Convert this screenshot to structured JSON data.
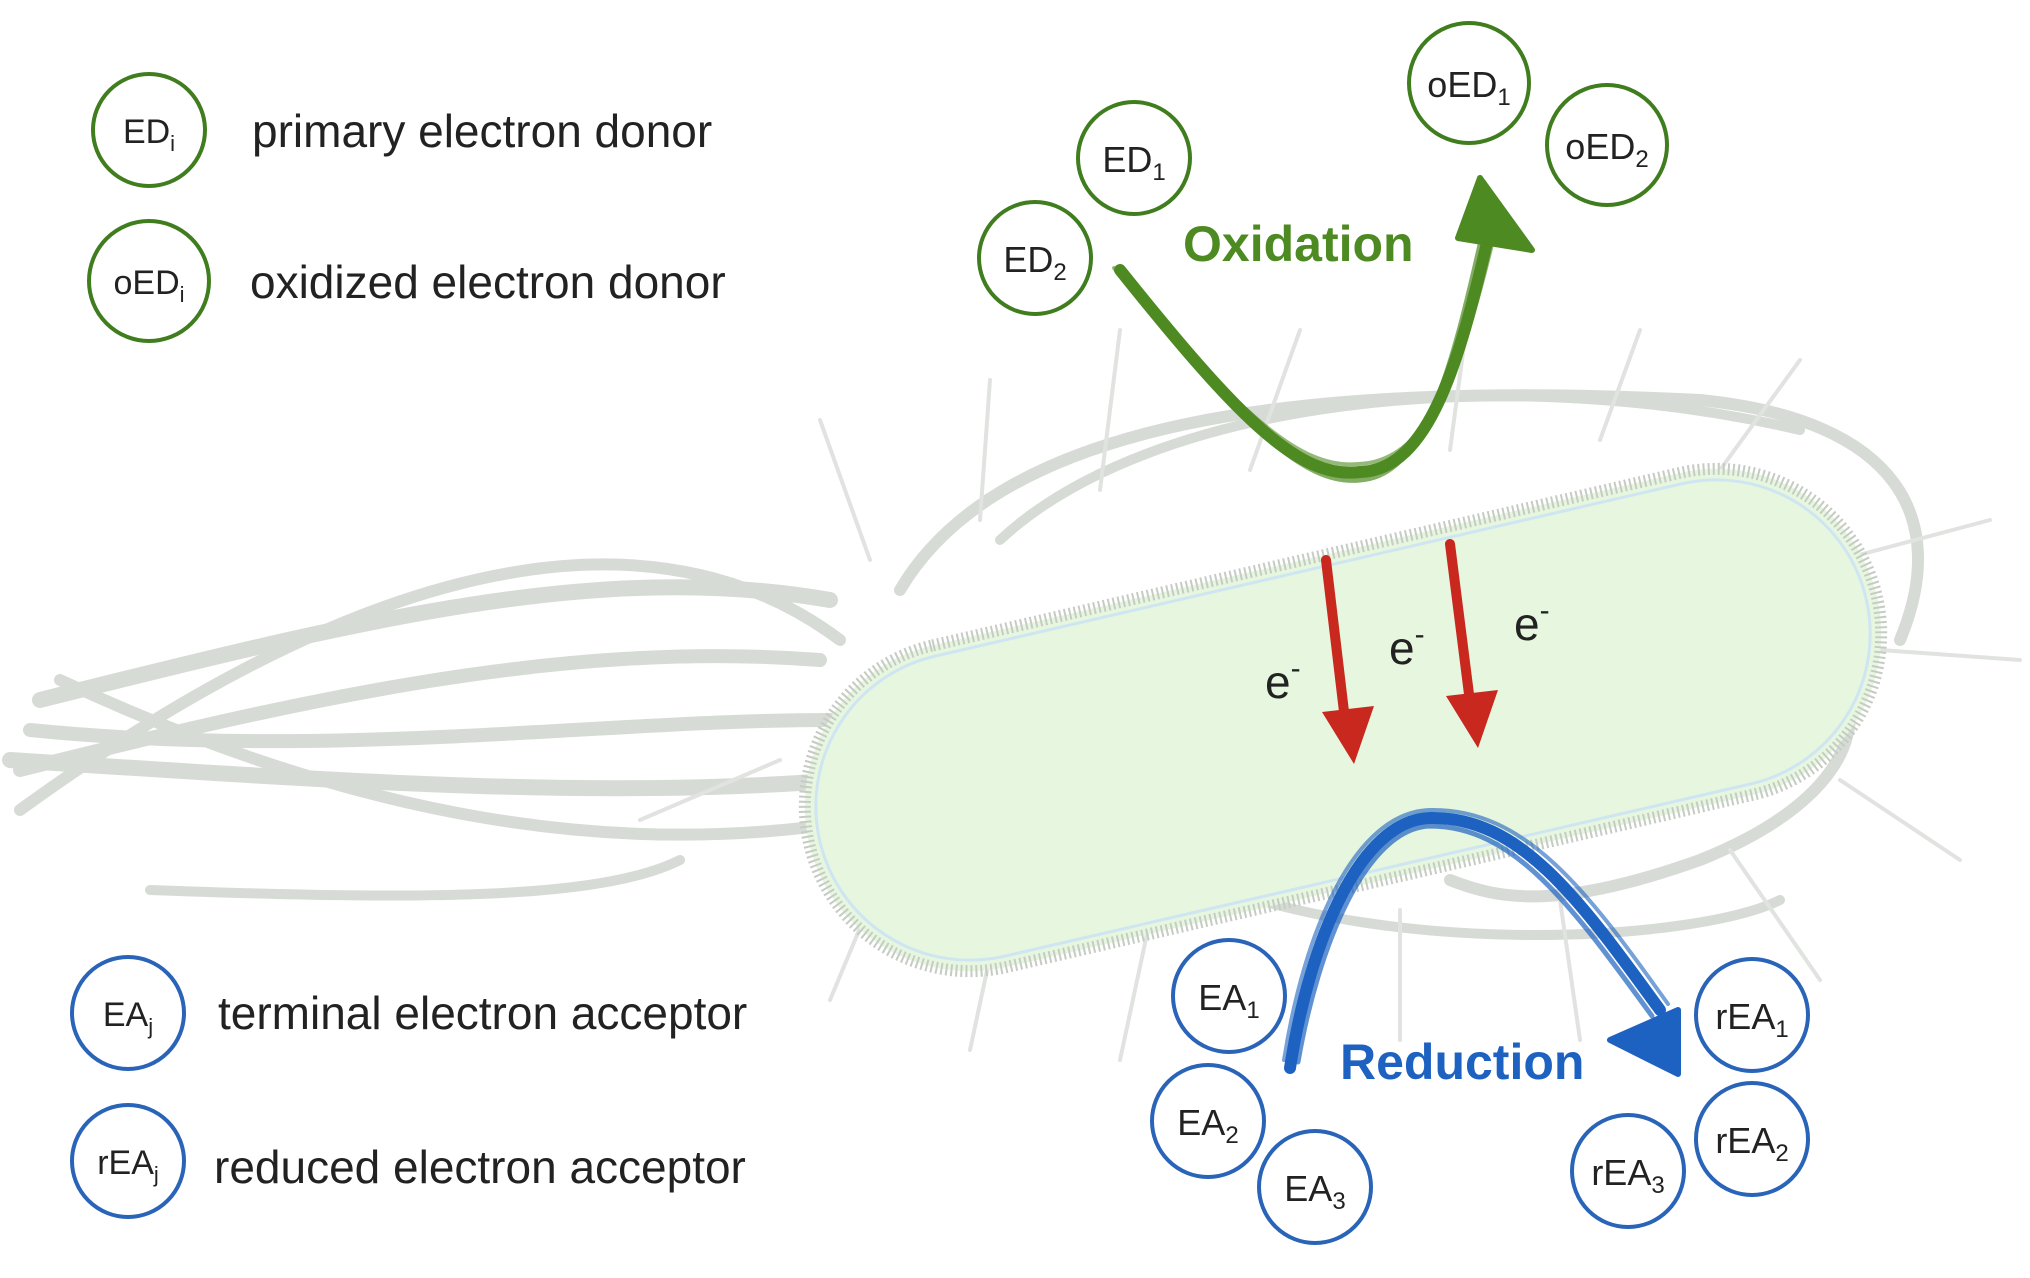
{
  "legend": {
    "donor": {
      "circle": "ED",
      "sub": "i",
      "text": "primary electron donor"
    },
    "oxidized_donor": {
      "circle": "oED",
      "sub": "i",
      "text": "oxidized electron donor"
    },
    "acceptor": {
      "circle": "EA",
      "sub": "j",
      "text": "terminal electron acceptor"
    },
    "reduced_acceptor": {
      "circle": "rEA",
      "sub": "j",
      "text": "reduced electron acceptor"
    }
  },
  "processes": {
    "oxidation": "Oxidation",
    "reduction": "Reduction"
  },
  "electron": {
    "symbol": "e",
    "charge": "-"
  },
  "molecules": {
    "ED1": {
      "base": "ED",
      "sub": "1"
    },
    "ED2": {
      "base": "ED",
      "sub": "2"
    },
    "oED1": {
      "base": "oED",
      "sub": "1"
    },
    "oED2": {
      "base": "oED",
      "sub": "2"
    },
    "EA1": {
      "base": "EA",
      "sub": "1"
    },
    "EA2": {
      "base": "EA",
      "sub": "2"
    },
    "EA3": {
      "base": "EA",
      "sub": "3"
    },
    "rEA1": {
      "base": "rEA",
      "sub": "1"
    },
    "rEA2": {
      "base": "rEA",
      "sub": "2"
    },
    "rEA3": {
      "base": "rEA",
      "sub": "3"
    }
  },
  "colors": {
    "donor": "#4e8a22",
    "donor_ring": "#3f7d1e",
    "acceptor": "#1d62c0",
    "acceptor_ring": "#2a64b8",
    "electron_arrow": "#c8281e",
    "cell_fill": "#e6f6df",
    "cell_edge": "#c6ccc4",
    "flagella": "#d7dbd6",
    "text": "#222222"
  }
}
